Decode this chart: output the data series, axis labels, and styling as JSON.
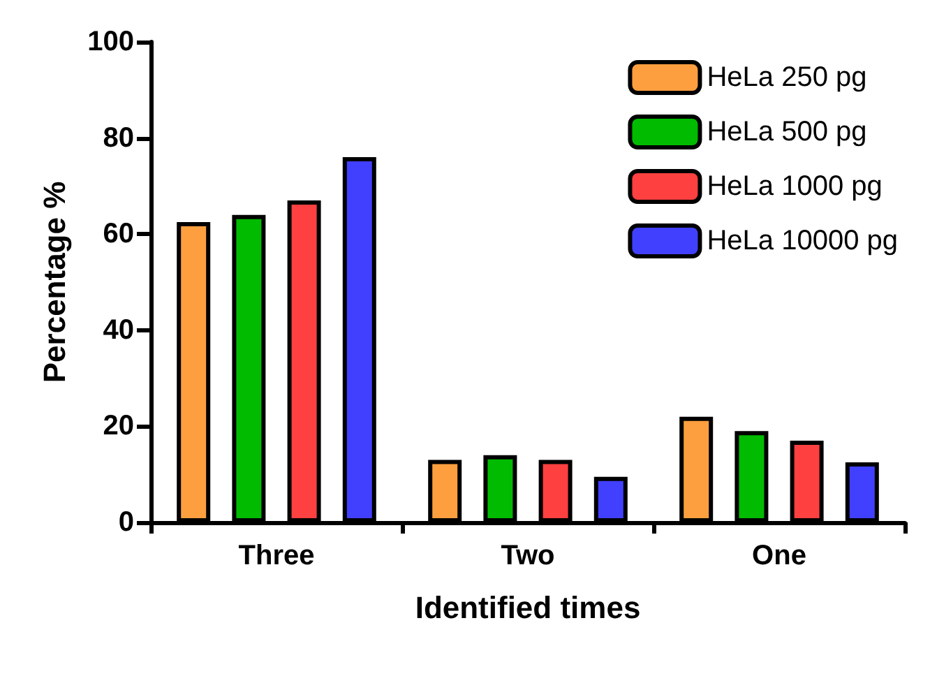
{
  "chart_data": {
    "type": "bar",
    "xlabel": "Identified times",
    "ylabel": "Percentage %",
    "categories": [
      "Three",
      "Two",
      "One"
    ],
    "series": [
      {
        "name": "HeLa 250 pg",
        "color": "#fe9f3f",
        "values": [
          62.5,
          13,
          22
        ]
      },
      {
        "name": "HeLa 500 pg",
        "color": "#00bb00",
        "values": [
          64,
          14,
          19
        ]
      },
      {
        "name": "HeLa 1000 pg",
        "color": "#fe4040",
        "values": [
          67,
          13,
          17
        ]
      },
      {
        "name": "HeLa 10000 pg",
        "color": "#4040fe",
        "values": [
          76,
          9.5,
          12.5
        ]
      }
    ],
    "ylim": [
      0,
      100
    ],
    "yticks": [
      0,
      20,
      40,
      60,
      80,
      100
    ],
    "grid": false,
    "legend": "top right"
  }
}
